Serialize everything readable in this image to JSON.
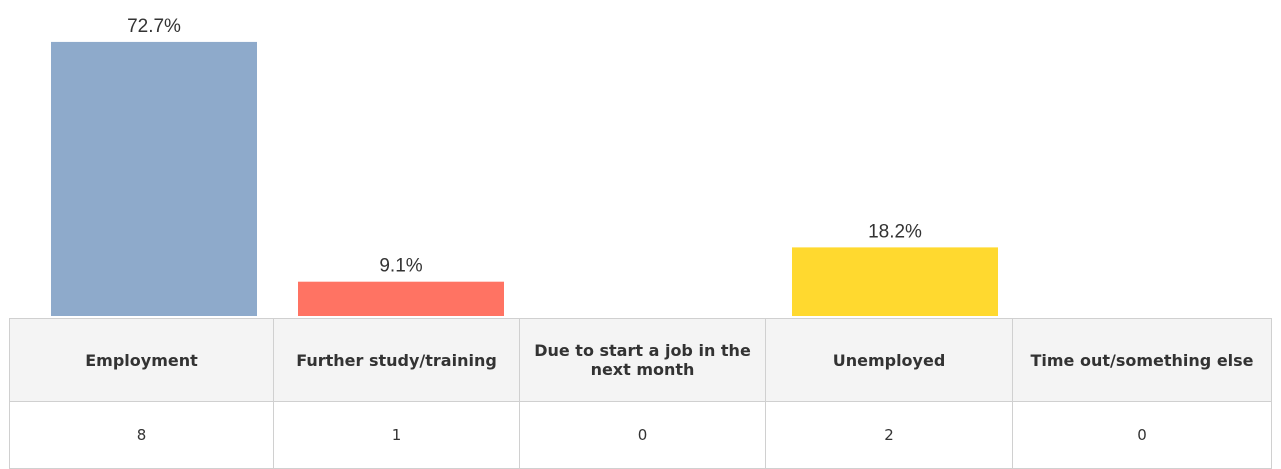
{
  "chart_data": {
    "type": "bar",
    "categories": [
      "Employment",
      "Further study/training",
      "Due to start a job in the next month",
      "Unemployed",
      "Time out/something else"
    ],
    "values": [
      72.7,
      9.1,
      0,
      18.2,
      0
    ],
    "value_labels": [
      "72.7%",
      "9.1%",
      null,
      "18.2%",
      null
    ],
    "colors": [
      "#8eaacb",
      "#ff7363",
      null,
      "#ffd92f",
      null
    ]
  },
  "table": {
    "counts": [
      8,
      1,
      0,
      2,
      0
    ]
  }
}
